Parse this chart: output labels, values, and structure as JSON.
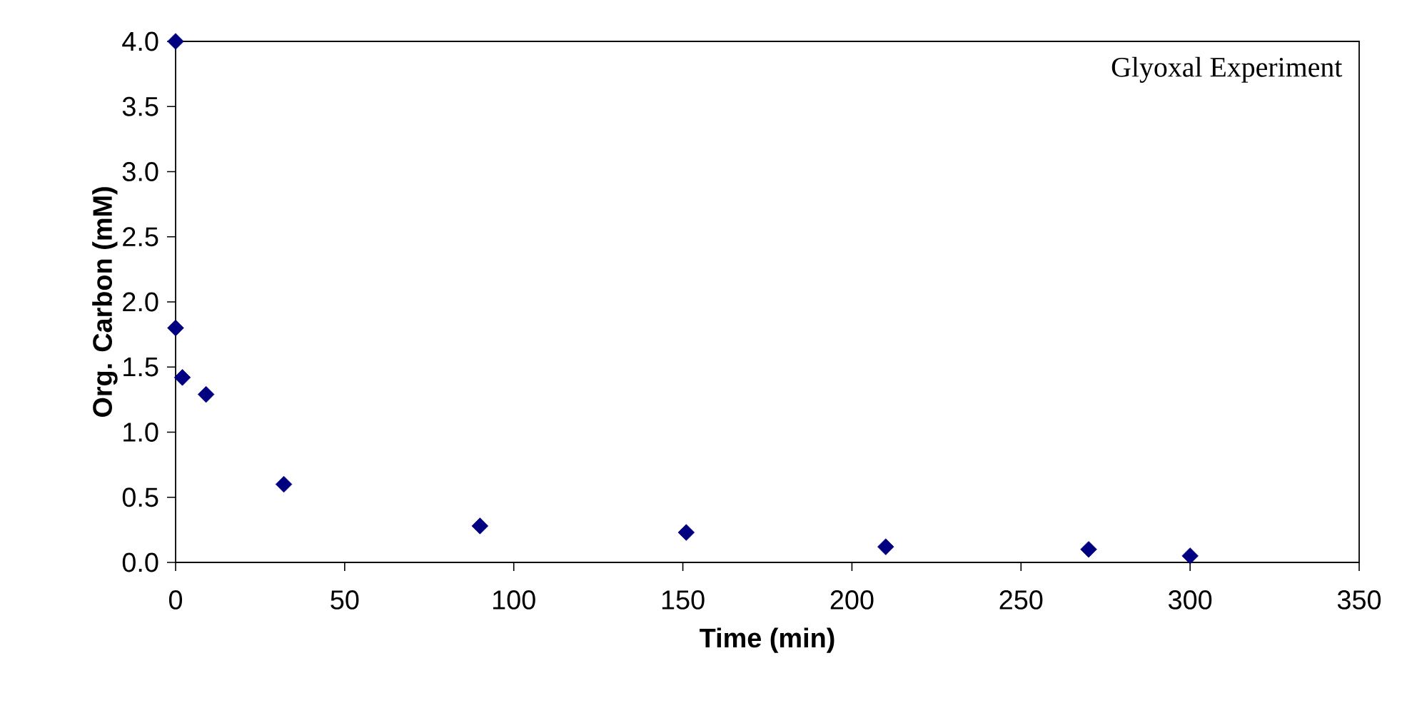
{
  "chart_data": {
    "type": "scatter",
    "title": "Glyoxal Experiment",
    "xlabel": "Time (min)",
    "ylabel": "Org. Carbon (mM)",
    "x": [
      0,
      0,
      2,
      9,
      32,
      90,
      151,
      210,
      270,
      300
    ],
    "series": [
      {
        "color": "#000080",
        "values": [
          4.0,
          1.8,
          1.42,
          1.29,
          0.6,
          0.28,
          0.23,
          0.12,
          0.1,
          0.05
        ]
      }
    ],
    "xlim": [
      0,
      350
    ],
    "xticks": [
      0,
      50,
      100,
      150,
      200,
      250,
      300,
      350
    ],
    "ylim": [
      0,
      4.0
    ],
    "yticks": [
      {
        "value": 0,
        "label": "0.0"
      },
      {
        "value": 0.5,
        "label": "0.5"
      },
      {
        "value": 1,
        "label": "1.0"
      },
      {
        "value": 1.5,
        "label": "1.5"
      },
      {
        "value": 2,
        "label": "2.0"
      },
      {
        "value": 2.5,
        "label": "2.5"
      },
      {
        "value": 3,
        "label": "3.0"
      },
      {
        "value": 3.5,
        "label": "3.5"
      },
      {
        "value": 4,
        "label": "4.0"
      }
    ],
    "grid": false,
    "marker": "diamond"
  }
}
